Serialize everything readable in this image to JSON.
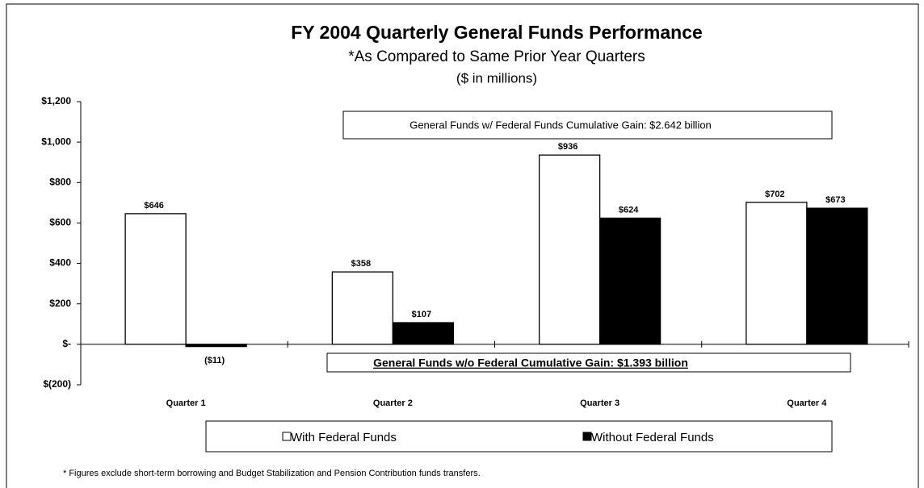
{
  "chart_data": {
    "type": "bar",
    "title": "FY 2004 Quarterly General Funds Performance",
    "subtitle": "*As Compared to Same Prior Year Quarters",
    "unit_note": "($ in millions)",
    "categories": [
      "Quarter 1",
      "Quarter 2",
      "Quarter 3",
      "Quarter 4"
    ],
    "series": [
      {
        "name": "With Federal Funds",
        "color": "#ffffff",
        "values": [
          646,
          358,
          936,
          702
        ],
        "value_labels": [
          "$646",
          "$358",
          "$936",
          "$702"
        ]
      },
      {
        "name": "Without Federal Funds",
        "color": "#000000",
        "values": [
          -11,
          107,
          624,
          673
        ],
        "value_labels": [
          "($11)",
          "$107",
          "$624",
          "$673"
        ]
      }
    ],
    "ylim": [
      -200,
      1200
    ],
    "yticks": [
      {
        "value": -200,
        "label": "$(200)"
      },
      {
        "value": 0,
        "label": "$-"
      },
      {
        "value": 200,
        "label": "$200"
      },
      {
        "value": 400,
        "label": "$400"
      },
      {
        "value": 600,
        "label": "$600"
      },
      {
        "value": 800,
        "label": "$800"
      },
      {
        "value": 1000,
        "label": "$1,000"
      },
      {
        "value": 1200,
        "label": "$1,200"
      }
    ],
    "annotations": [
      "General Funds w/ Federal Funds Cumulative Gain:  $2.642 billion",
      "General Funds w/o Federal Cumulative Gain:  $1.393 billion"
    ],
    "footnote": "* Figures exclude short-term borrowing and Budget Stabilization and Pension Contribution funds transfers."
  }
}
